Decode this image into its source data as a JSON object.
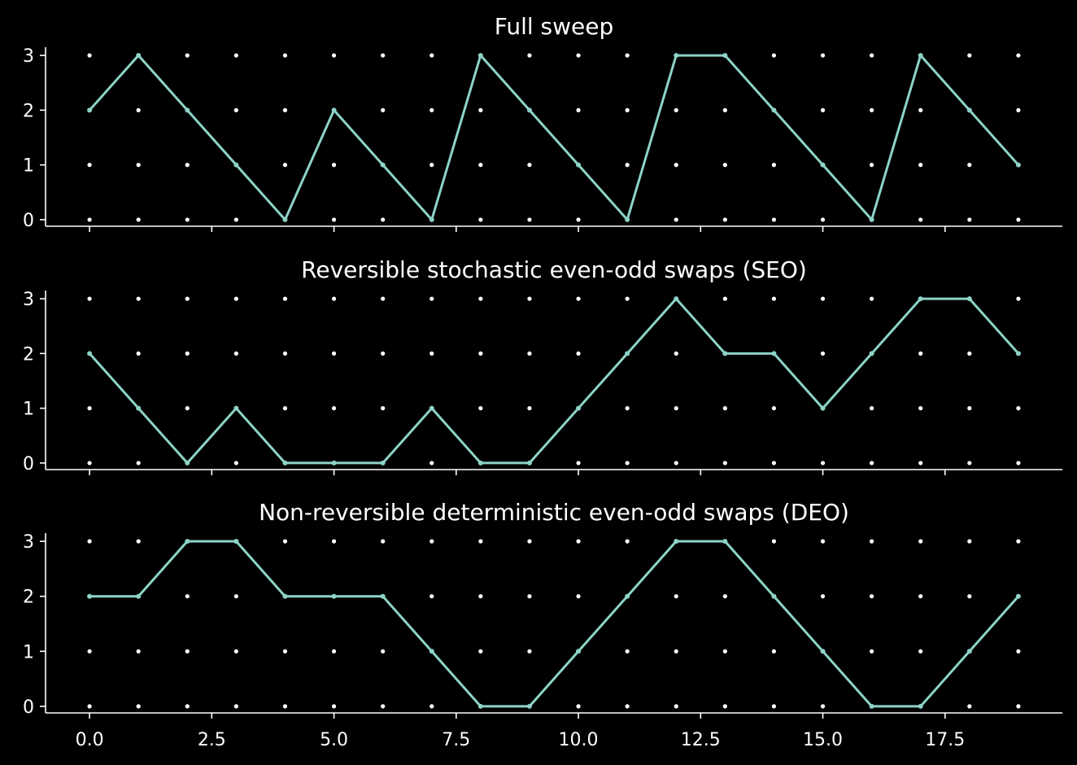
{
  "chart_data": [
    {
      "type": "line",
      "title": "Full sweep",
      "x": [
        0,
        1,
        2,
        3,
        4,
        5,
        6,
        7,
        8,
        9,
        10,
        11,
        12,
        13,
        14,
        15,
        16,
        17,
        18,
        19
      ],
      "y": [
        2,
        3,
        2,
        1,
        0,
        2,
        1,
        0,
        3,
        2,
        1,
        0,
        3,
        3,
        2,
        1,
        0,
        3,
        2,
        1
      ],
      "xlim": [
        -0.9,
        19.9
      ],
      "ylim": [
        -0.12,
        3.15
      ],
      "yticks": [
        "0",
        "1",
        "2",
        "3"
      ],
      "xticks": [
        "0.0",
        "2.5",
        "5.0",
        "7.5",
        "10.0",
        "12.5",
        "15.0",
        "17.5"
      ],
      "show_xtick_labels": false,
      "grid": "dot lattice at integer x and y",
      "line_color": "#8dd3c7",
      "dot_color": "#ffffff"
    },
    {
      "type": "line",
      "title": "Reversible stochastic even-odd swaps (SEO)",
      "x": [
        0,
        1,
        2,
        3,
        4,
        5,
        6,
        7,
        8,
        9,
        10,
        11,
        12,
        13,
        14,
        15,
        16,
        17,
        18,
        19
      ],
      "y": [
        2,
        1,
        0,
        1,
        0,
        0,
        0,
        1,
        0,
        0,
        1,
        2,
        3,
        2,
        2,
        1,
        2,
        3,
        3,
        2
      ],
      "xlim": [
        -0.9,
        19.9
      ],
      "ylim": [
        -0.12,
        3.15
      ],
      "yticks": [
        "0",
        "1",
        "2",
        "3"
      ],
      "xticks": [
        "0.0",
        "2.5",
        "5.0",
        "7.5",
        "10.0",
        "12.5",
        "15.0",
        "17.5"
      ],
      "show_xtick_labels": false,
      "grid": "dot lattice at integer x and y",
      "line_color": "#8dd3c7",
      "dot_color": "#ffffff"
    },
    {
      "type": "line",
      "title": "Non-reversible deterministic even-odd swaps (DEO)",
      "x": [
        0,
        1,
        2,
        3,
        4,
        5,
        6,
        7,
        8,
        9,
        10,
        11,
        12,
        13,
        14,
        15,
        16,
        17,
        18,
        19
      ],
      "y": [
        2,
        2,
        3,
        3,
        2,
        2,
        2,
        1,
        0,
        0,
        1,
        2,
        3,
        3,
        2,
        1,
        0,
        0,
        1,
        2
      ],
      "xlim": [
        -0.9,
        19.9
      ],
      "ylim": [
        -0.12,
        3.15
      ],
      "yticks": [
        "0",
        "1",
        "2",
        "3"
      ],
      "xticks": [
        "0.0",
        "2.5",
        "5.0",
        "7.5",
        "10.0",
        "12.5",
        "15.0",
        "17.5"
      ],
      "show_xtick_labels": true,
      "grid": "dot lattice at integer x and y",
      "line_color": "#8dd3c7",
      "dot_color": "#ffffff"
    }
  ]
}
